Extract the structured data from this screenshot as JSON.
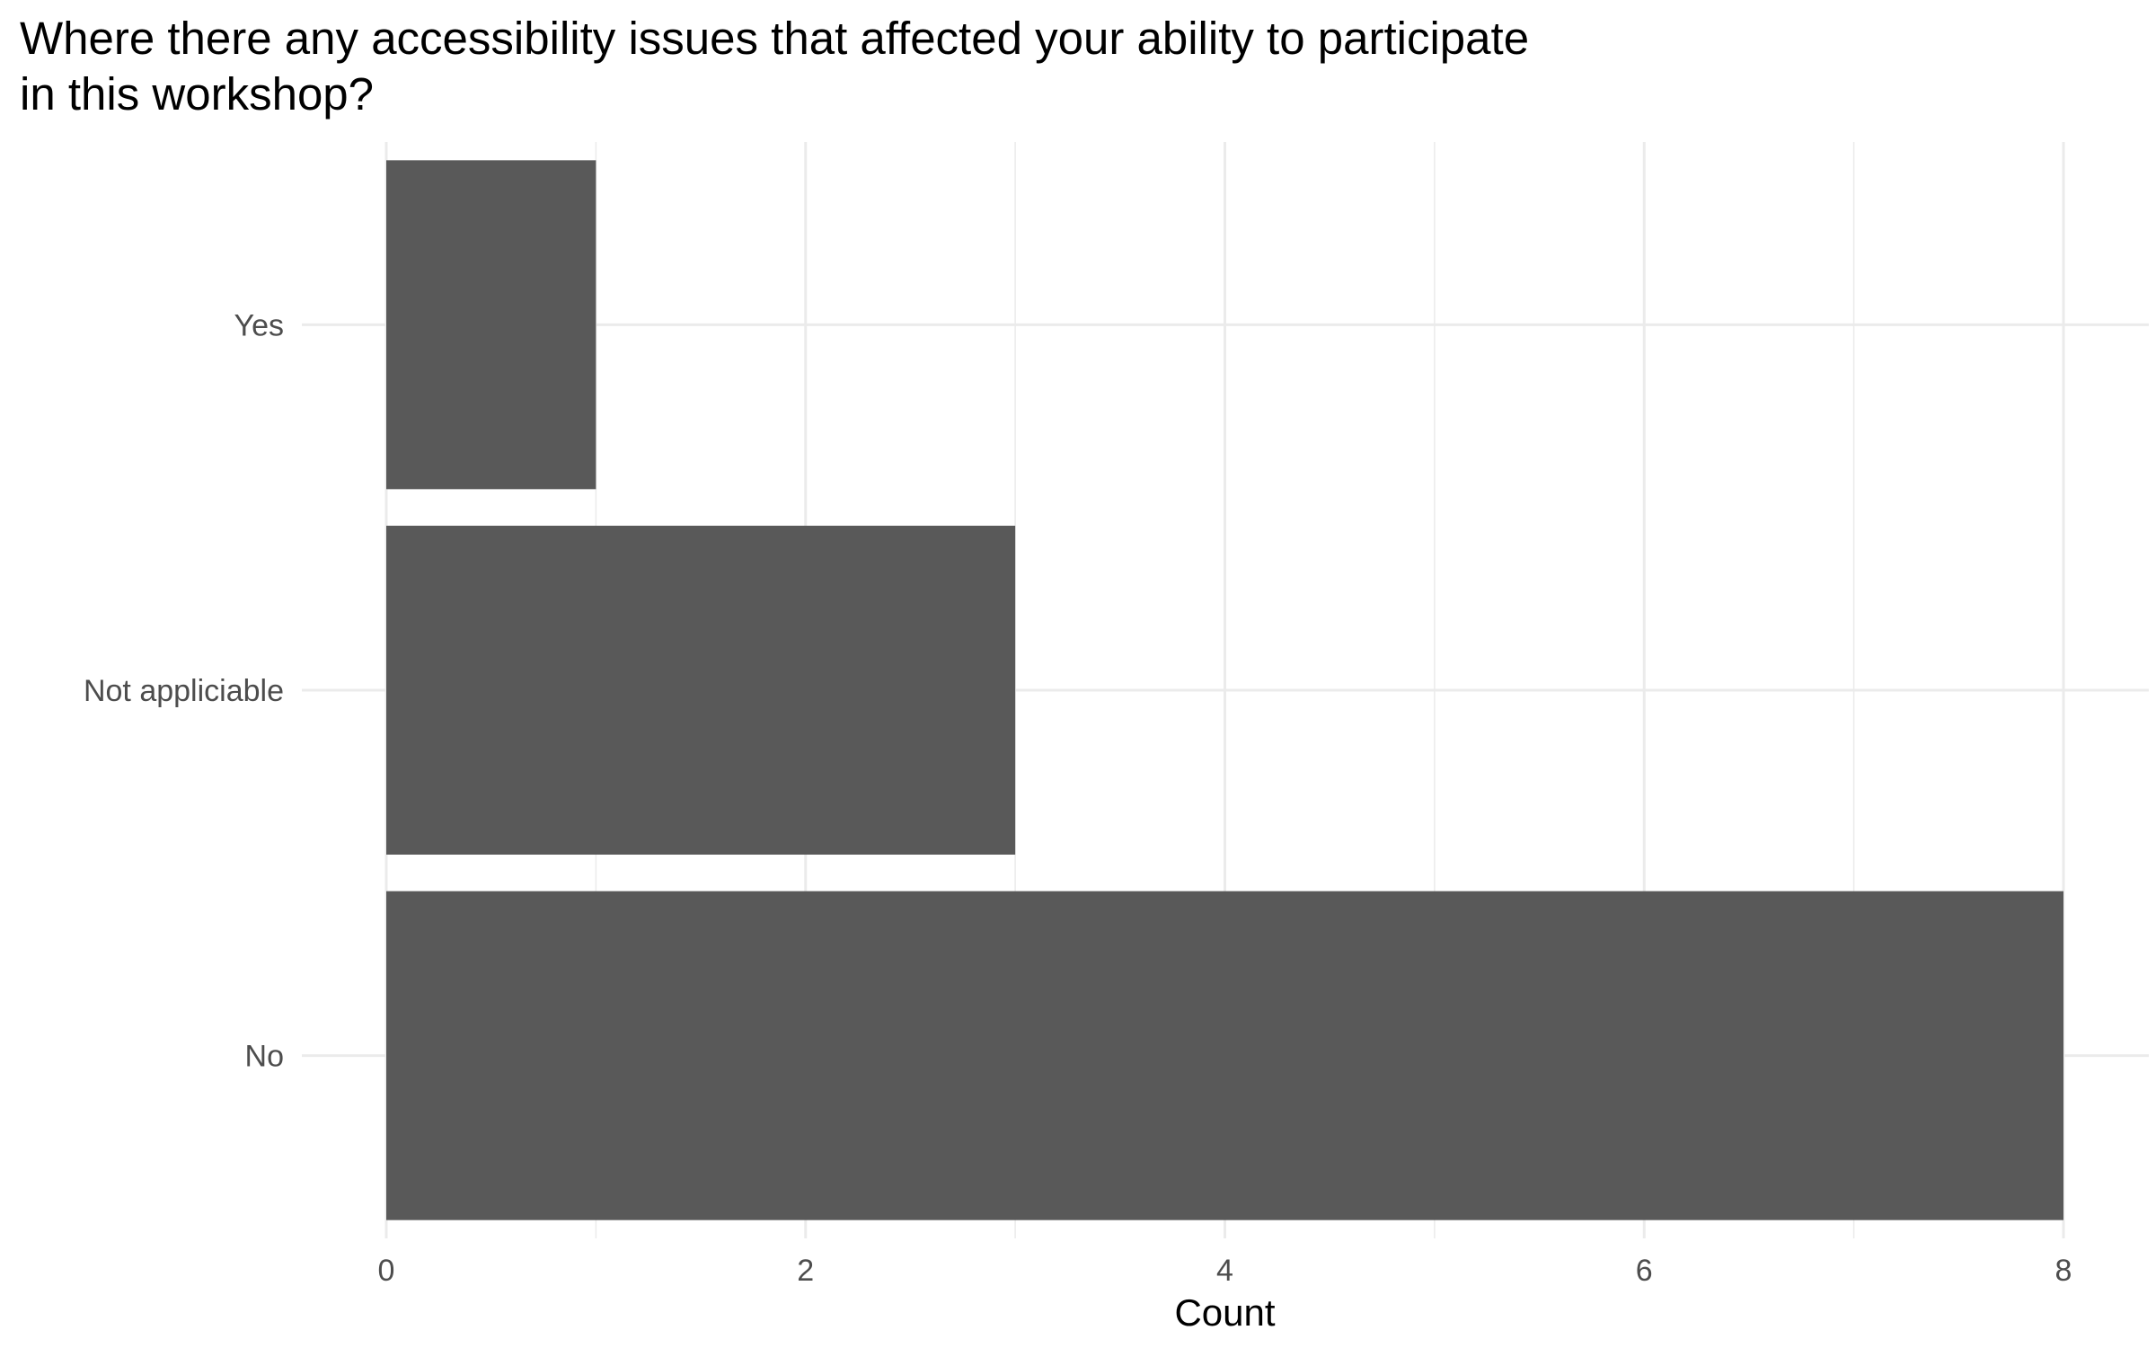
{
  "chart_data": {
    "type": "bar",
    "orientation": "horizontal",
    "title": "Where there any accessibility issues that affected your ability to participate\nin this workshop?",
    "xlabel": "Count",
    "ylabel": "",
    "categories": [
      "No",
      "Not appliciable",
      "Yes"
    ],
    "values": [
      8,
      3,
      1
    ],
    "xlim": [
      0,
      8
    ],
    "xticks": [
      0,
      2,
      4,
      6,
      8
    ],
    "grid": true,
    "bar_color": "#595959",
    "grid_color": "#ebebeb"
  }
}
